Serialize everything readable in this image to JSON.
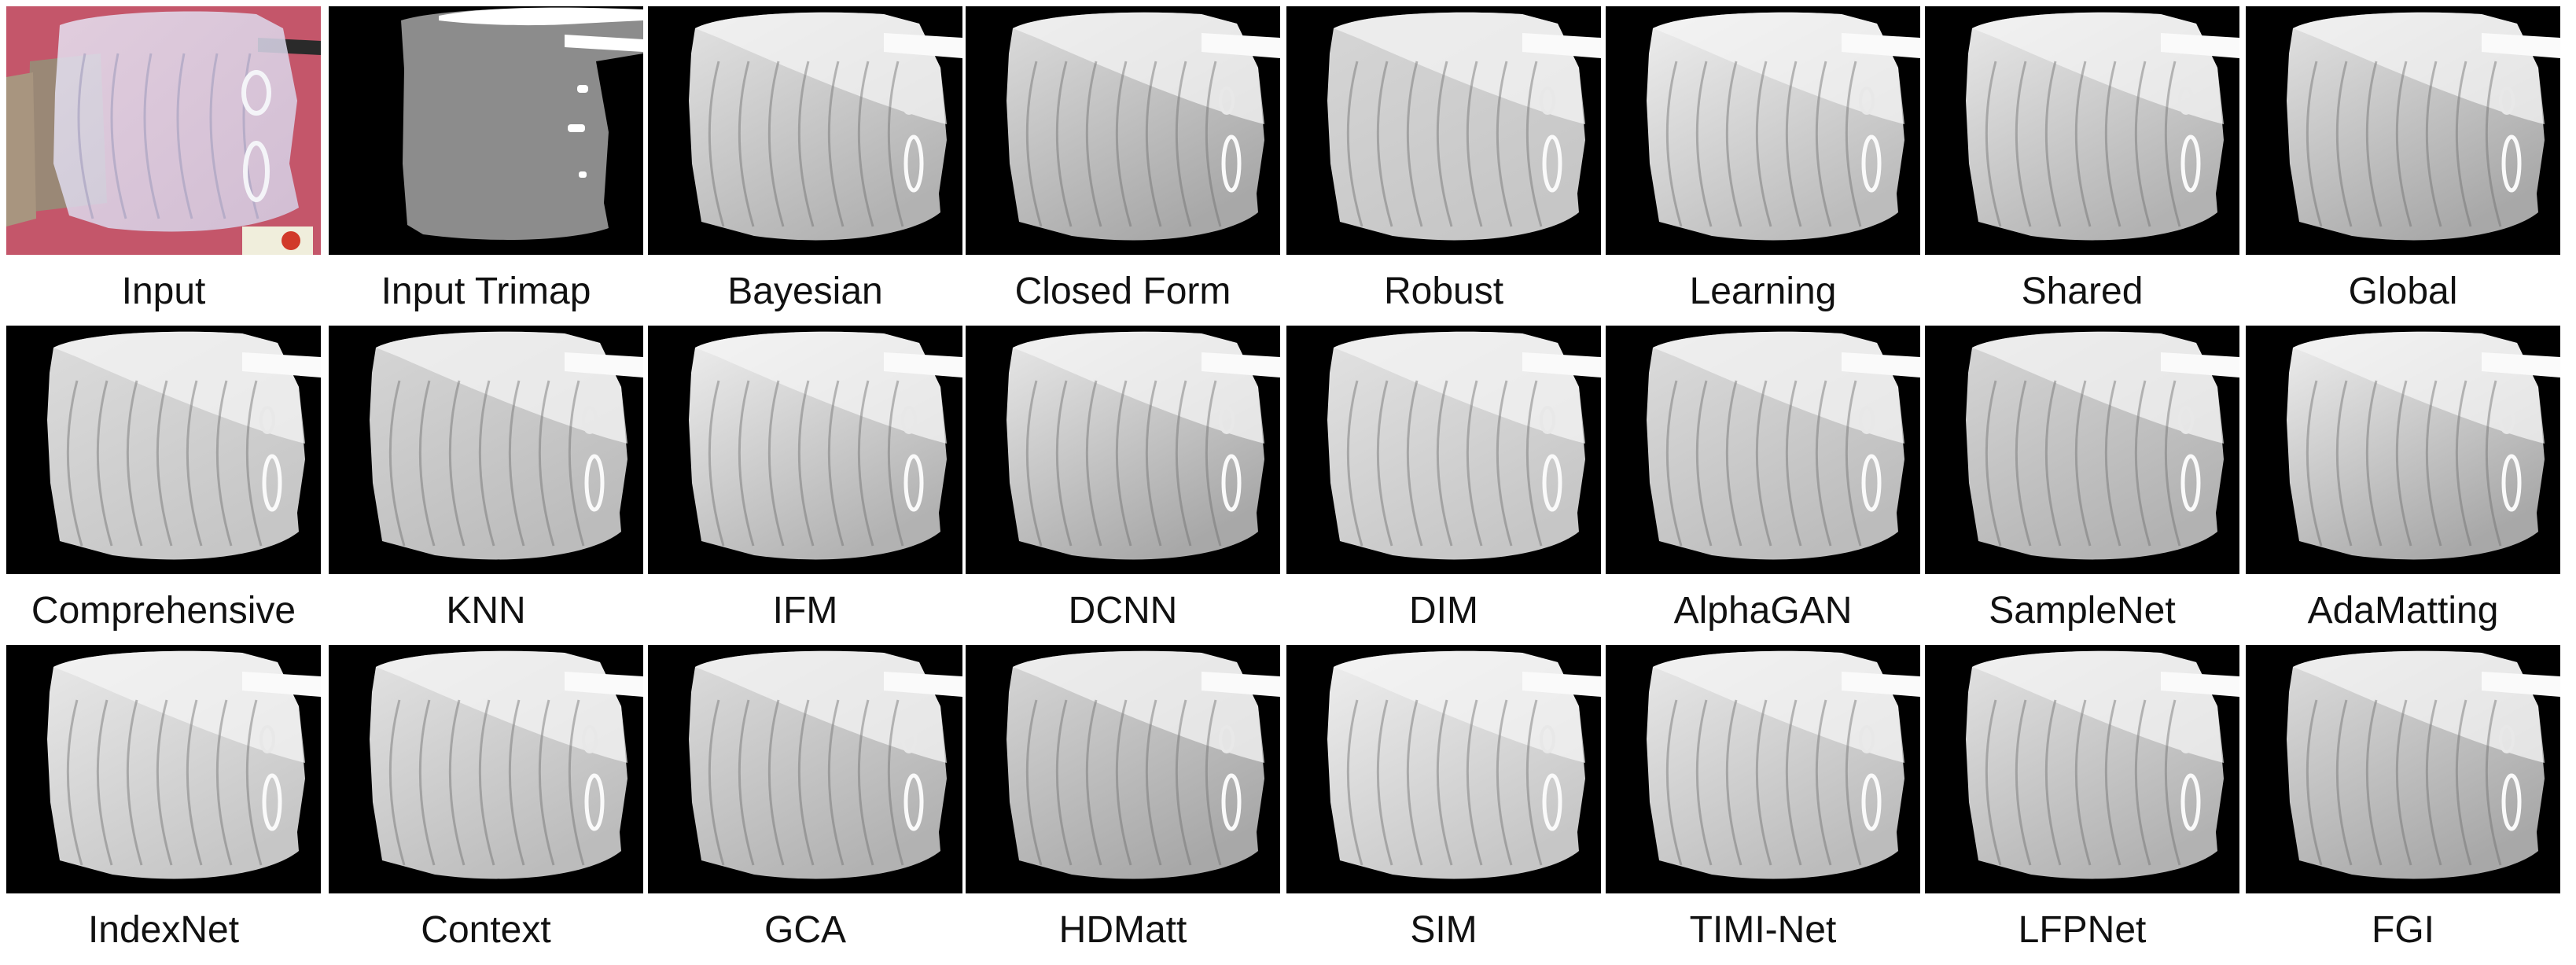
{
  "rows": [
    {
      "items": [
        {
          "id": "input",
          "label": "Input",
          "style": "photo"
        },
        {
          "id": "trimap",
          "label": "Input Trimap",
          "style": "trimap"
        },
        {
          "id": "bayesian",
          "label": "Bayesian",
          "style": "matte"
        },
        {
          "id": "closed-form",
          "label": "Closed Form",
          "style": "matte"
        },
        {
          "id": "robust",
          "label": "Robust",
          "style": "matte"
        },
        {
          "id": "learning",
          "label": "Learning",
          "style": "matte"
        },
        {
          "id": "shared",
          "label": "Shared",
          "style": "matte"
        },
        {
          "id": "global",
          "label": "Global",
          "style": "matte"
        }
      ]
    },
    {
      "items": [
        {
          "id": "comprehensive",
          "label": "Comprehensive",
          "style": "matte"
        },
        {
          "id": "knn",
          "label": "KNN",
          "style": "matte"
        },
        {
          "id": "ifm",
          "label": "IFM",
          "style": "matte"
        },
        {
          "id": "dcnn",
          "label": "DCNN",
          "style": "matte"
        },
        {
          "id": "dim",
          "label": "DIM",
          "style": "matte"
        },
        {
          "id": "alphagan",
          "label": "AlphaGAN",
          "style": "matte"
        },
        {
          "id": "samplenet",
          "label": "SampleNet",
          "style": "matte"
        },
        {
          "id": "adamatting",
          "label": "AdaMatting",
          "style": "matte"
        }
      ]
    },
    {
      "items": [
        {
          "id": "indexnet",
          "label": "IndexNet",
          "style": "matte"
        },
        {
          "id": "context",
          "label": "Context",
          "style": "matte"
        },
        {
          "id": "gca",
          "label": "GCA",
          "style": "matte"
        },
        {
          "id": "hdmatt",
          "label": "HDMatt",
          "style": "matte"
        },
        {
          "id": "sim",
          "label": "SIM",
          "style": "matte"
        },
        {
          "id": "timi-net",
          "label": "TIMI-Net",
          "style": "matte"
        },
        {
          "id": "lfpnet",
          "label": "LFPNet",
          "style": "matte"
        },
        {
          "id": "fgi",
          "label": "FGI",
          "style": "matte"
        }
      ]
    }
  ],
  "colors": {
    "background": "#ffffff",
    "photo_wall": "#c4566a",
    "cloth_photo": "#d4d0e6",
    "trimap_unknown": "#8c8c8c",
    "trimap_fg": "#ffffff",
    "matte_bg": "#000000",
    "matte_fg": "#eeeeee",
    "caption_text": "#111111"
  }
}
